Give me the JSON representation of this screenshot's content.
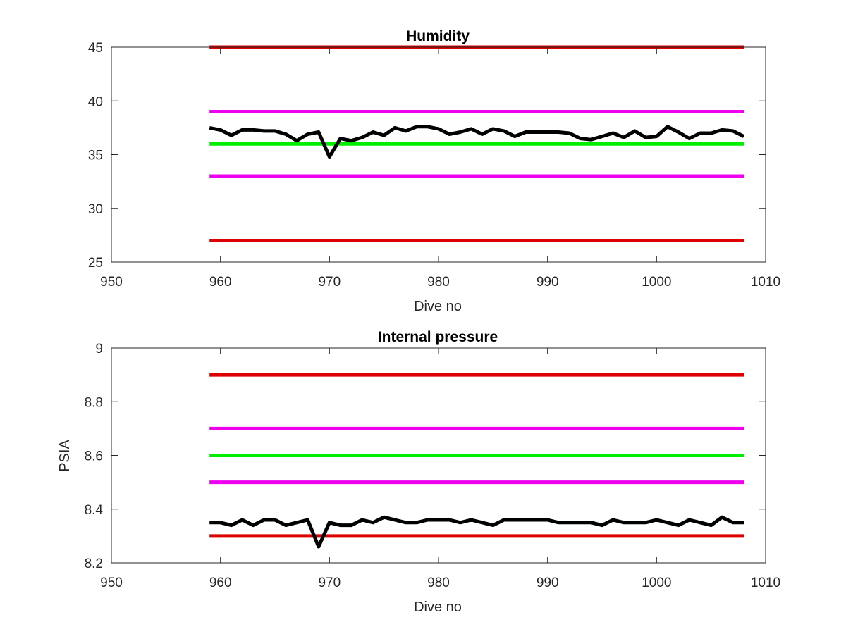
{
  "chart_data": [
    {
      "type": "line",
      "title": "Humidity",
      "xlabel": "Dive no",
      "ylabel": "",
      "xlim": [
        950,
        1010
      ],
      "ylim": [
        25,
        45
      ],
      "xticks": [
        "950",
        "960",
        "970",
        "980",
        "990",
        "1000",
        "1010"
      ],
      "yticks": [
        "25",
        "30",
        "35",
        "40",
        "45"
      ],
      "grid": false,
      "series": [
        {
          "role": "limit",
          "color": "#dd0000",
          "x": [
            959,
            1008
          ],
          "values": [
            45,
            45
          ]
        },
        {
          "role": "limit",
          "color": "#ee00ee",
          "x": [
            959,
            1008
          ],
          "values": [
            39,
            39
          ]
        },
        {
          "role": "target",
          "color": "#00ee00",
          "x": [
            959,
            1008
          ],
          "values": [
            36,
            36
          ]
        },
        {
          "role": "limit",
          "color": "#ee00ee",
          "x": [
            959,
            1008
          ],
          "values": [
            33,
            33
          ]
        },
        {
          "role": "limit",
          "color": "#dd0000",
          "x": [
            959,
            1008
          ],
          "values": [
            27,
            27
          ]
        },
        {
          "role": "measurement",
          "color": "#000000",
          "x": [
            959,
            960,
            961,
            962,
            963,
            964,
            965,
            966,
            967,
            968,
            969,
            970,
            971,
            972,
            973,
            974,
            975,
            976,
            977,
            978,
            979,
            980,
            981,
            982,
            983,
            984,
            985,
            986,
            987,
            988,
            989,
            990,
            991,
            992,
            993,
            994,
            995,
            996,
            997,
            998,
            999,
            1000,
            1001,
            1002,
            1003,
            1004,
            1005,
            1006,
            1007,
            1008
          ],
          "values": [
            37.5,
            37.3,
            36.8,
            37.3,
            37.3,
            37.2,
            37.2,
            36.9,
            36.3,
            36.9,
            37.1,
            34.8,
            36.5,
            36.3,
            36.6,
            37.1,
            36.8,
            37.5,
            37.2,
            37.6,
            37.6,
            37.4,
            36.9,
            37.1,
            37.4,
            36.9,
            37.4,
            37.2,
            36.7,
            37.1,
            37.1,
            37.1,
            37.1,
            37.0,
            36.5,
            36.4,
            36.7,
            37.0,
            36.6,
            37.2,
            36.6,
            36.7,
            37.6,
            37.1,
            36.5,
            37.0,
            37.0,
            37.3,
            37.2,
            36.7
          ]
        }
      ]
    },
    {
      "type": "line",
      "title": "Internal pressure",
      "xlabel": "Dive no",
      "ylabel": "PSIA",
      "xlim": [
        950,
        1010
      ],
      "ylim": [
        8.2,
        9
      ],
      "xticks": [
        "950",
        "960",
        "970",
        "980",
        "990",
        "1000",
        "1010"
      ],
      "yticks": [
        "8.2",
        "8.4",
        "8.6",
        "8.8",
        "9"
      ],
      "grid": false,
      "series": [
        {
          "role": "limit",
          "color": "#dd0000",
          "x": [
            959,
            1008
          ],
          "values": [
            8.9,
            8.9
          ]
        },
        {
          "role": "limit",
          "color": "#ee00ee",
          "x": [
            959,
            1008
          ],
          "values": [
            8.7,
            8.7
          ]
        },
        {
          "role": "target",
          "color": "#00ee00",
          "x": [
            959,
            1008
          ],
          "values": [
            8.6,
            8.6
          ]
        },
        {
          "role": "limit",
          "color": "#ee00ee",
          "x": [
            959,
            1008
          ],
          "values": [
            8.5,
            8.5
          ]
        },
        {
          "role": "limit",
          "color": "#dd0000",
          "x": [
            959,
            1008
          ],
          "values": [
            8.3,
            8.3
          ]
        },
        {
          "role": "measurement",
          "color": "#000000",
          "x": [
            959,
            960,
            961,
            962,
            963,
            964,
            965,
            966,
            967,
            968,
            969,
            970,
            971,
            972,
            973,
            974,
            975,
            976,
            977,
            978,
            979,
            980,
            981,
            982,
            983,
            984,
            985,
            986,
            987,
            988,
            989,
            990,
            991,
            992,
            993,
            994,
            995,
            996,
            997,
            998,
            999,
            1000,
            1001,
            1002,
            1003,
            1004,
            1005,
            1006,
            1007,
            1008
          ],
          "values": [
            8.35,
            8.35,
            8.34,
            8.36,
            8.34,
            8.36,
            8.36,
            8.34,
            8.35,
            8.36,
            8.26,
            8.35,
            8.34,
            8.34,
            8.36,
            8.35,
            8.37,
            8.36,
            8.35,
            8.35,
            8.36,
            8.36,
            8.36,
            8.35,
            8.36,
            8.35,
            8.34,
            8.36,
            8.36,
            8.36,
            8.36,
            8.36,
            8.35,
            8.35,
            8.35,
            8.35,
            8.34,
            8.36,
            8.35,
            8.35,
            8.35,
            8.36,
            8.35,
            8.34,
            8.36,
            8.35,
            8.34,
            8.37,
            8.35,
            8.35
          ]
        }
      ]
    }
  ]
}
